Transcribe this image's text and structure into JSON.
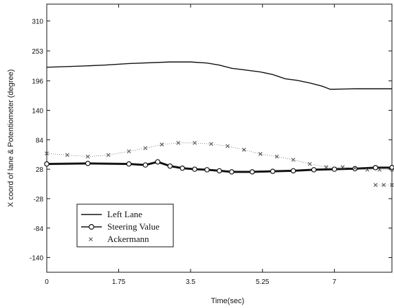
{
  "chart_data": {
    "type": "line",
    "xlabel": "Time(sec)",
    "ylabel": "X coord of lane & Potentiometer (degree)",
    "xlim": [
      0,
      8.4
    ],
    "ylim": [
      -168,
      342
    ],
    "xticks": [
      0,
      1.75,
      3.5,
      5.25,
      7
    ],
    "xtick_labels": [
      "0",
      "1.75",
      "3.5",
      "5.25",
      "7"
    ],
    "yticks": [
      310,
      253,
      196,
      140,
      84,
      28,
      -28,
      -84,
      -140
    ],
    "ytick_labels": [
      "310",
      "253",
      "196",
      "140",
      "84",
      "28",
      "-28",
      "-84",
      "-140"
    ],
    "grid": false,
    "legend_position": "bottom-left",
    "series": [
      {
        "name": "Left Lane",
        "style": "solid",
        "color": "#111111",
        "x": [
          0,
          0.8,
          1.4,
          2.0,
          3.0,
          3.5,
          3.9,
          4.2,
          4.5,
          4.9,
          5.2,
          5.5,
          5.8,
          6.1,
          6.4,
          6.7,
          6.9,
          7.5,
          8.4
        ],
        "y": [
          222,
          224,
          226,
          229,
          232,
          232,
          230,
          226,
          220,
          216,
          213,
          208,
          200,
          197,
          192,
          186,
          180,
          181,
          181
        ]
      },
      {
        "name": "Steering Value",
        "style": "solid-circle",
        "color": "#111111",
        "x": [
          0,
          1.0,
          2.0,
          2.4,
          2.7,
          3.0,
          3.3,
          3.6,
          3.9,
          4.2,
          4.5,
          5.0,
          5.5,
          6.0,
          6.5,
          7.0,
          7.5,
          8.0,
          8.4
        ],
        "y": [
          38,
          39,
          38,
          36,
          42,
          34,
          30,
          28,
          27,
          25,
          23,
          23,
          24,
          25,
          27,
          28,
          29,
          31,
          31
        ]
      },
      {
        "name": "Ackermann",
        "style": "x-markers",
        "color": "#555555",
        "x": [
          0,
          0.5,
          1.0,
          1.5,
          2.0,
          2.4,
          2.8,
          3.2,
          3.6,
          4.0,
          4.4,
          4.8,
          5.2,
          5.6,
          6.0,
          6.4,
          6.8,
          7.2,
          7.5,
          7.8,
          8.1,
          8.4
        ],
        "y": [
          58,
          55,
          52,
          55,
          62,
          68,
          75,
          78,
          78,
          76,
          72,
          65,
          57,
          52,
          46,
          38,
          32,
          32,
          30,
          27,
          27,
          27
        ]
      },
      {
        "name": "",
        "style": "x-markers",
        "color": "#555555",
        "x": [
          8.0,
          8.2,
          8.4
        ],
        "y": [
          -2,
          -2,
          -2
        ]
      }
    ]
  }
}
